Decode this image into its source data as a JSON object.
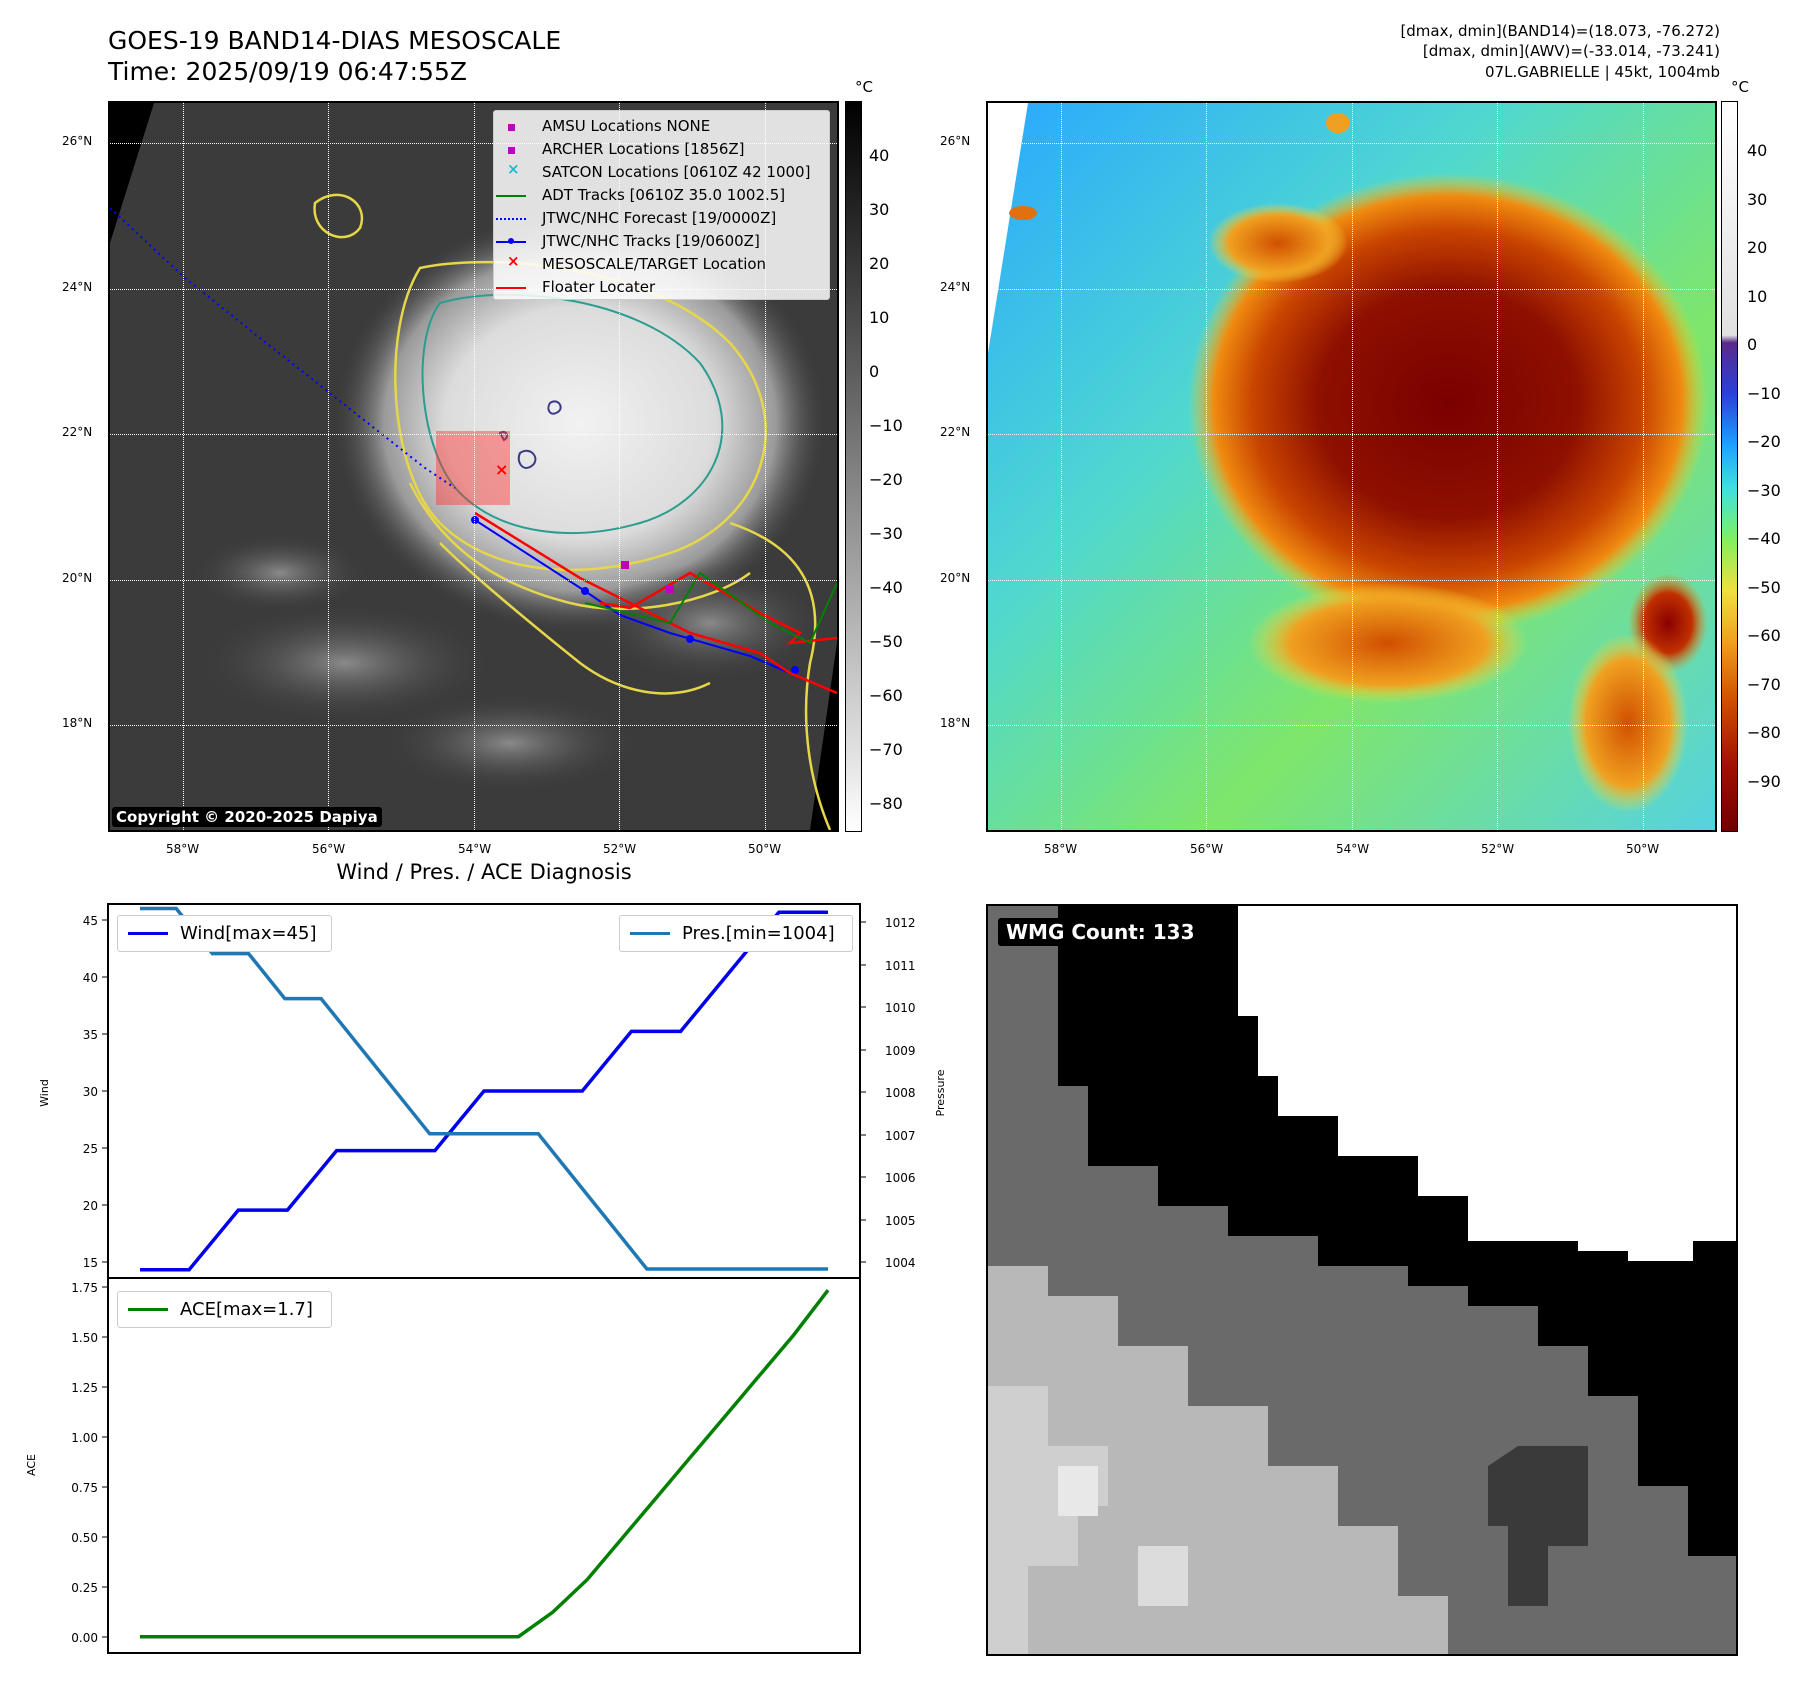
{
  "header": {
    "title": "GOES-19 BAND14-DIAS MESOSCALE",
    "time": "Time: 2025/09/19 06:47:55Z",
    "stats_line1": "[dmax, dmin](BAND14)=(18.073, -76.272)",
    "stats_line2": "[dmax, dmin](AWV)=(-33.014, -73.241)",
    "storm_line": "07L.GABRIELLE | 45kt, 1004mb"
  },
  "map_axes": {
    "lat_labels": [
      "26°N",
      "24°N",
      "22°N",
      "20°N",
      "18°N"
    ],
    "lat_values": [
      26,
      24,
      22,
      20,
      18
    ],
    "lon_labels": [
      "58°W",
      "56°W",
      "54°W",
      "52°W",
      "50°W"
    ],
    "lon_values": [
      -58,
      -56,
      -54,
      -52,
      -50
    ],
    "lat_range": [
      16.6,
      26.6
    ],
    "lon_range": [
      -59.0,
      -49.0
    ]
  },
  "ir_panel": {
    "unit": "°C",
    "colorbar_ticks": [
      "40",
      "30",
      "20",
      "10",
      "0",
      "−10",
      "−20",
      "−30",
      "−40",
      "−50",
      "−60",
      "−70",
      "−80"
    ],
    "copyright": "Copyright © 2020-2025 Dapiya",
    "legend": [
      {
        "label": "AMSU Locations NONE",
        "marker": "square",
        "color": "#c000c0"
      },
      {
        "label": "ARCHER Locations [1856Z]",
        "marker": "square",
        "color": "#c000c0"
      },
      {
        "label": "SATCON Locations [0610Z 42 1000]",
        "marker": "x",
        "color": "#17becf"
      },
      {
        "label": "ADT Tracks [0610Z 35.0 1002.5]",
        "marker": "line",
        "color": "#008000"
      },
      {
        "label": "JTWC/NHC Forecast [19/0000Z]",
        "marker": "dotted",
        "color": "#0000ff"
      },
      {
        "label": "JTWC/NHC Tracks [19/0600Z]",
        "marker": "line-dot",
        "color": "#0000ff"
      },
      {
        "label": "MESOSCALE/TARGET Location",
        "marker": "x",
        "color": "#ff0000"
      },
      {
        "label": "Floater Locater",
        "marker": "line",
        "color": "#ff0000"
      }
    ]
  },
  "awv_panel": {
    "unit": "°C",
    "colorbar_ticks": [
      "40",
      "30",
      "20",
      "10",
      "0",
      "−10",
      "−20",
      "−30",
      "−40",
      "−50",
      "−60",
      "−70",
      "−80",
      "−90"
    ]
  },
  "diag_panel": {
    "title": "Wind / Pres. / ACE Diagnosis",
    "wind_ylabel": "Wind",
    "pressure_ylabel": "Pressure",
    "ace_ylabel": "ACE",
    "wind_ticks": [
      "45",
      "40",
      "35",
      "30",
      "25",
      "20",
      "15"
    ],
    "pressure_ticks": [
      "1012",
      "1011",
      "1010",
      "1009",
      "1008",
      "1007",
      "1006",
      "1005",
      "1004"
    ],
    "ace_ticks": [
      "1.75",
      "1.50",
      "1.25",
      "1.00",
      "0.75",
      "0.50",
      "0.25",
      "0.00"
    ],
    "wind_legend": "Wind[max=45]",
    "pressure_legend": "Pres.[min=1004]",
    "ace_legend": "ACE[max=1.7]"
  },
  "wmg_panel": {
    "label": "WMG Count: 133"
  },
  "colors": {
    "wind": "#0000ee",
    "pressure": "#1f77b4",
    "ace": "#008000",
    "track_blue": "#0000ff",
    "track_red": "#ff0000"
  },
  "chart_data": [
    {
      "type": "line",
      "series": [
        {
          "name": "Wind[max=45]",
          "values": [
            15,
            15,
            20,
            20,
            25,
            25,
            25,
            30,
            30,
            30,
            35,
            35,
            40,
            45,
            45
          ]
        }
      ],
      "ylabel": "Wind",
      "ylim": [
        14.3,
        45.7
      ]
    },
    {
      "type": "line",
      "series": [
        {
          "name": "Pres.[min=1004]",
          "values": [
            1012,
            1012,
            1011,
            1011,
            1010,
            1010,
            1009,
            1008,
            1007,
            1007,
            1007,
            1007,
            1006,
            1005,
            1004,
            1004,
            1004,
            1004,
            1004,
            1004
          ]
        }
      ],
      "ylabel": "Pressure",
      "ylim": [
        1003.8,
        1012.1
      ]
    },
    {
      "type": "line",
      "series": [
        {
          "name": "ACE[max=1.7]",
          "values": [
            0,
            0,
            0,
            0,
            0,
            0,
            0,
            0,
            0,
            0,
            0,
            0,
            0.12,
            0.28,
            0.48,
            0.68,
            0.88,
            1.08,
            1.28,
            1.48,
            1.7
          ]
        }
      ],
      "ylabel": "ACE",
      "ylim": [
        -0.08,
        1.76
      ]
    }
  ]
}
